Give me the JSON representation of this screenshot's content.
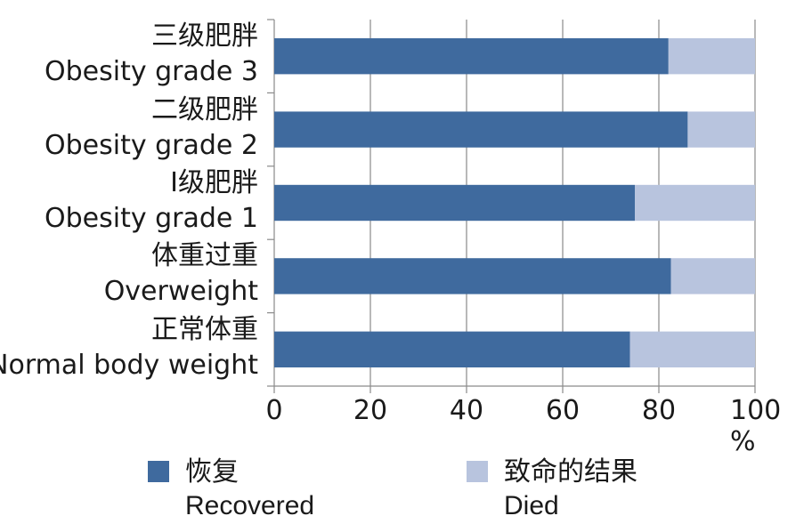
{
  "chart_data": {
    "type": "bar",
    "orientation": "horizontal",
    "stacked": true,
    "categories": [
      {
        "zh": "三级肥胖",
        "en": "Obesity grade 3"
      },
      {
        "zh": "二级肥胖",
        "en": "Obesity grade 2"
      },
      {
        "zh": "I级肥胖",
        "en": "Obesity grade 1"
      },
      {
        "zh": "体重过重",
        "en": "Overweight"
      },
      {
        "zh": "正常体重",
        "en": "Normal body weight"
      }
    ],
    "series": [
      {
        "name_zh": "恢复",
        "name_en": "Recovered",
        "color": "#3f6a9e",
        "values": [
          82,
          86,
          75,
          82.5,
          74
        ]
      },
      {
        "name_zh": "致命的结果",
        "name_en": "Died",
        "color": "#b8c4de",
        "values": [
          18,
          14,
          25,
          17.5,
          26
        ]
      }
    ],
    "xlim": [
      0,
      100
    ],
    "xticks": [
      "0",
      "20",
      "40",
      "60",
      "80",
      "100 %"
    ],
    "grid": true,
    "legend_position": "bottom"
  }
}
